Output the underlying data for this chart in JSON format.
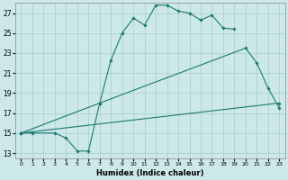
{
  "xlabel": "Humidex (Indice chaleur)",
  "ylabel": "",
  "bg_color": "#cce8e8",
  "grid_color": "#aacccc",
  "line_color": "#1a7a6e",
  "xlim": [
    -0.5,
    23.5
  ],
  "ylim": [
    12.5,
    28.0
  ],
  "yticks": [
    13,
    15,
    17,
    19,
    21,
    23,
    25,
    27
  ],
  "xticks": [
    0,
    1,
    2,
    3,
    4,
    5,
    6,
    7,
    8,
    9,
    10,
    11,
    12,
    13,
    14,
    15,
    16,
    17,
    18,
    19,
    20,
    21,
    22,
    23
  ],
  "line1_x": [
    0,
    1,
    3,
    4,
    5,
    6,
    7,
    8,
    9,
    10,
    11,
    12,
    13,
    14,
    15,
    16,
    17,
    18,
    19
  ],
  "line1_y": [
    15,
    15,
    15,
    14.5,
    13.2,
    13.2,
    18.0,
    22.3,
    25.0,
    26.5,
    25.8,
    27.8,
    27.8,
    27.2,
    27.0,
    26.3,
    26.8,
    25.5,
    25.4
  ],
  "line2_x": [
    0,
    7,
    20,
    21,
    22,
    23
  ],
  "line2_y": [
    15,
    18.0,
    23.5,
    22.0,
    19.5,
    17.5
  ],
  "line3_x": [
    0,
    23
  ],
  "line3_y": [
    15,
    18.0
  ]
}
